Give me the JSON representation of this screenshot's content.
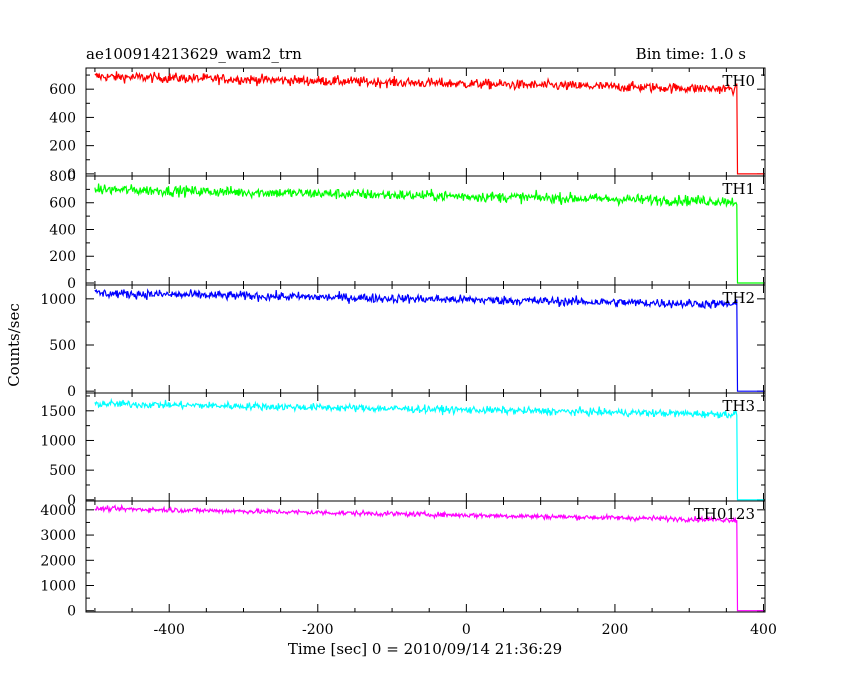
{
  "chart_data": {
    "type": "line",
    "title": "ae100914213629_wam2_trn",
    "bin_time": "Bin time: 1.0 s",
    "xlabel": "Time [sec] 0 = 2010/09/14 21:36:29",
    "ylabel": "Counts/sec",
    "xlim": [
      -512,
      402
    ],
    "xticks": [
      "-400",
      "-200",
      "0",
      "200",
      "400"
    ],
    "xtick_values": [
      -400,
      -200,
      0,
      200,
      400
    ],
    "drop_time": 365,
    "panels": [
      {
        "name": "TH0",
        "color": "#ff0000",
        "ylim": [
          -15,
          750
        ],
        "yticks": [
          "0",
          "200",
          "400",
          "600"
        ],
        "ytick_values": [
          0,
          200,
          400,
          600
        ],
        "start_level": 690,
        "end_level": 600,
        "noise": 25,
        "after_level": 0
      },
      {
        "name": "TH1",
        "color": "#00ff00",
        "ylim": [
          -15,
          800
        ],
        "yticks": [
          "0",
          "200",
          "400",
          "600",
          "800"
        ],
        "ytick_values": [
          0,
          200,
          400,
          600,
          800
        ],
        "start_level": 700,
        "end_level": 610,
        "noise": 28,
        "after_level": 0
      },
      {
        "name": "TH2",
        "color": "#0000ff",
        "ylim": [
          -20,
          1150
        ],
        "yticks": [
          "0",
          "500",
          "1000"
        ],
        "ytick_values": [
          0,
          500,
          1000
        ],
        "start_level": 1060,
        "end_level": 940,
        "noise": 35,
        "after_level": 0
      },
      {
        "name": "TH3",
        "color": "#00ffff",
        "ylim": [
          -20,
          1800
        ],
        "yticks": [
          "0",
          "500",
          "1000",
          "1500"
        ],
        "ytick_values": [
          0,
          500,
          1000,
          1500
        ],
        "start_level": 1620,
        "end_level": 1440,
        "noise": 45,
        "after_level": 0
      },
      {
        "name": "TH0123",
        "color": "#ff00ff",
        "ylim": [
          -50,
          4350
        ],
        "yticks": [
          "0",
          "1000",
          "2000",
          "3000",
          "4000"
        ],
        "ytick_values": [
          0,
          1000,
          2000,
          3000,
          4000
        ],
        "start_level": 4050,
        "end_level": 3600,
        "noise": 70,
        "after_level": 0
      }
    ]
  }
}
